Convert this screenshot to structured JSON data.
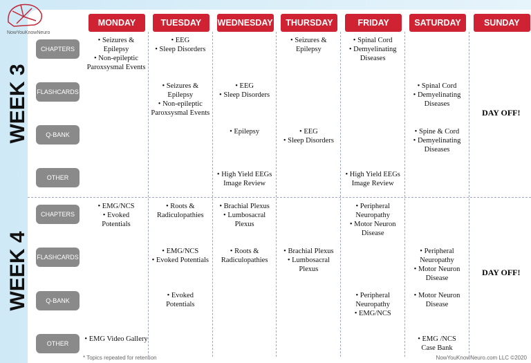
{
  "logo": "NowYouKnowNeuro",
  "days": [
    "MONDAY",
    "TUESDAY",
    "WEDNESDAY",
    "THURSDAY",
    "FRIDAY",
    "SATURDAY",
    "SUNDAY"
  ],
  "weeks": [
    {
      "label": "WEEK 3",
      "day_off": "DAY OFF!",
      "rows": [
        {
          "label": "CHAPTERS",
          "cells": [
            [
              "• Seizures &",
              "Epilepsy",
              "• Non-epileptic",
              "Paroxsysmal Events"
            ],
            [
              "• EEG",
              "• Sleep Disorders"
            ],
            [],
            [
              "• Seizures &",
              "Epilepsy"
            ],
            [
              "• Spinal Cord",
              "• Demyelinating",
              "Diseases"
            ],
            []
          ]
        },
        {
          "label": "FLASHCARDS",
          "cells": [
            [],
            [
              "• Seizures &",
              "Epilepsy",
              "• Non-epileptic",
              "Paroxsysmal Events"
            ],
            [
              "• EEG",
              "• Sleep Disorders"
            ],
            [],
            [],
            [
              "• Spinal Cord",
              "• Demyelinating",
              "Diseases"
            ]
          ]
        },
        {
          "label": "Q-BANK",
          "cells": [
            [],
            [],
            [
              "• Epilepsy"
            ],
            [
              "• EEG",
              "• Sleep Disorders"
            ],
            [],
            [
              "• Spine & Cord",
              "• Demyelinating",
              "Diseases"
            ]
          ]
        },
        {
          "label": "OTHER",
          "cells": [
            [],
            [],
            [
              "• High Yield EEGs",
              "Image Review"
            ],
            [],
            [
              "• High Yield EEGs",
              "Image Review"
            ],
            []
          ]
        }
      ]
    },
    {
      "label": "WEEK 4",
      "day_off": "DAY OFF!",
      "rows": [
        {
          "label": "CHAPTERS",
          "cells": [
            [
              "• EMG/NCS",
              "• Evoked",
              "Potentials"
            ],
            [
              "• Roots &",
              "Radiculopathies"
            ],
            [
              "• Brachial Plexus",
              "• Lumbosacral",
              "Plexus"
            ],
            [],
            [
              "• Peripheral",
              "Neuropathy",
              "• Motor Neuron",
              "Disease"
            ],
            []
          ]
        },
        {
          "label": "FLASHCARDS",
          "cells": [
            [],
            [
              "• EMG/NCS",
              "• Evoked Potentials"
            ],
            [
              "• Roots &",
              "Radiculopathies"
            ],
            [
              "• Brachial Plexus",
              "• Lumbosacral",
              "Plexus"
            ],
            [],
            [
              "• Peripheral",
              "Neuropathy",
              "• Motor Neuron",
              "Disease"
            ]
          ]
        },
        {
          "label": "Q-BANK",
          "cells": [
            [],
            [
              "• Evoked",
              "Potentials"
            ],
            [],
            [],
            [
              "• Peripheral",
              "Neuropathy",
              "• EMG/NCS"
            ],
            [
              "• Motor Neuron",
              "Disease"
            ]
          ]
        },
        {
          "label": "OTHER",
          "cells": [
            [
              "• EMG Video Gallery"
            ],
            [],
            [],
            [],
            [],
            [
              "• EMG /NCS",
              "Case Bank"
            ]
          ]
        }
      ]
    }
  ],
  "footnote": "* Topics repeated for retention",
  "copyright": "NowYouKnowNeuro.com LLC ©2020"
}
